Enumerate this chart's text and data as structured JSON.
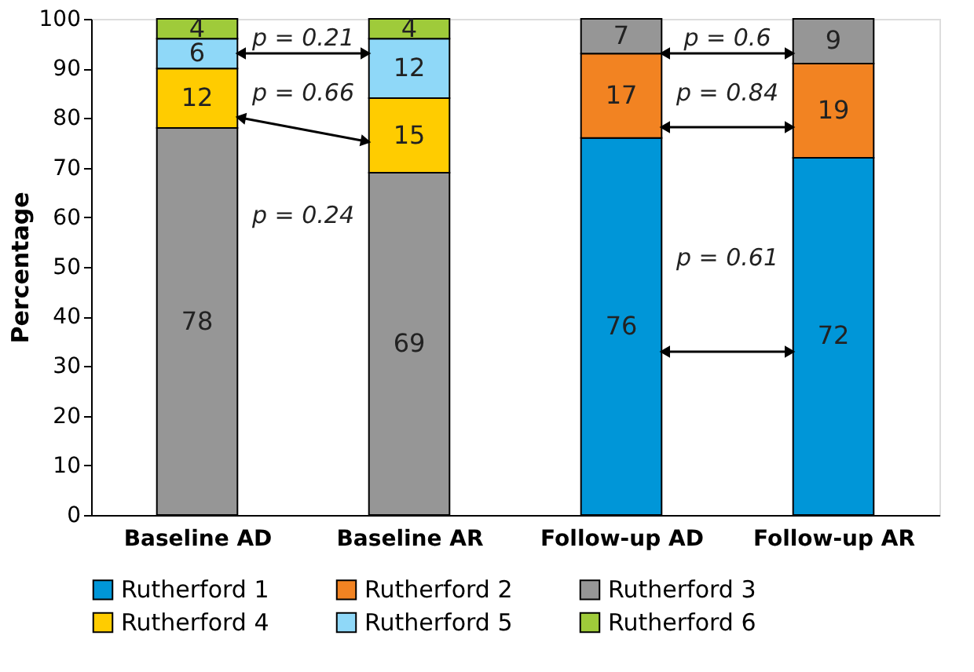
{
  "chart_data": {
    "type": "bar",
    "stacked": true,
    "ylabel": "Percentage",
    "categories": [
      "Baseline AD",
      "Baseline AR",
      "Follow-up AD",
      "Follow-up AR"
    ],
    "series": [
      {
        "name": "Rutherford 1",
        "color": "#0096d8",
        "values": [
          null,
          null,
          76,
          72
        ]
      },
      {
        "name": "Rutherford 2",
        "color": "#f28322",
        "values": [
          null,
          null,
          17,
          19
        ]
      },
      {
        "name": "Rutherford 3",
        "color": "#969696",
        "values": [
          78,
          69,
          7,
          9
        ]
      },
      {
        "name": "Rutherford 4",
        "color": "#ffcc00",
        "values": [
          12,
          15,
          null,
          null
        ]
      },
      {
        "name": "Rutherford 5",
        "color": "#8fd8f8",
        "values": [
          6,
          12,
          null,
          null
        ]
      },
      {
        "name": "Rutherford 6",
        "color": "#9fcb3a",
        "values": [
          4,
          4,
          null,
          null
        ]
      }
    ],
    "ylim": [
      0,
      100
    ],
    "yticks": [
      0,
      10,
      20,
      30,
      40,
      50,
      60,
      70,
      80,
      90,
      100
    ],
    "data_labels": true,
    "grid": false,
    "legend": "bottom",
    "annotations": [
      "p = 0.21",
      "p = 0.66",
      "p = 0.24",
      "p = 0.6",
      "p = 0.84",
      "p = 0.61"
    ]
  }
}
